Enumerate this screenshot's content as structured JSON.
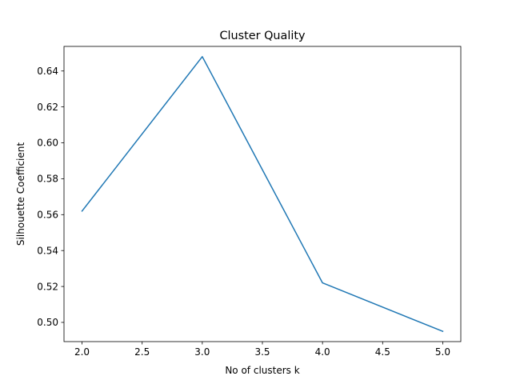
{
  "chart_data": {
    "type": "line",
    "title": "Cluster Quality",
    "xlabel": "No of clusters k",
    "ylabel": "Silhouette Coefficient",
    "x": [
      2,
      3,
      4,
      5
    ],
    "series": [
      {
        "values": [
          0.562,
          0.648,
          0.522,
          0.495
        ],
        "color": "#1f77b4"
      }
    ],
    "xlim": [
      1.85,
      5.15
    ],
    "ylim": [
      0.4893,
      0.6537
    ],
    "xticks": [
      2.0,
      2.5,
      3.0,
      3.5,
      4.0,
      4.5,
      5.0
    ],
    "xtick_labels": [
      "2.0",
      "2.5",
      "3.0",
      "3.5",
      "4.0",
      "4.5",
      "5.0"
    ],
    "yticks": [
      0.5,
      0.52,
      0.54,
      0.56,
      0.58,
      0.6,
      0.62,
      0.64
    ],
    "ytick_labels": [
      "0.50",
      "0.52",
      "0.54",
      "0.56",
      "0.58",
      "0.60",
      "0.62",
      "0.64"
    ],
    "grid": false,
    "legend": "none"
  }
}
